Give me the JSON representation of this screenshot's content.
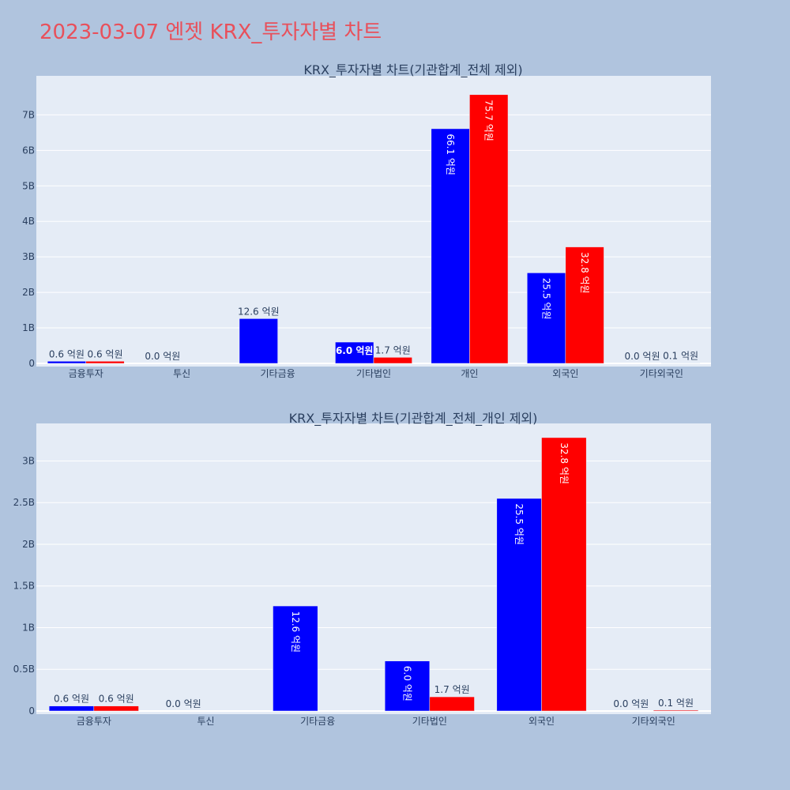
{
  "title": "2023-03-07 엔젯 KRX_투자자별 차트",
  "colors": {
    "page_bg": "#b0c4de",
    "plot_bg": "#e5ecf6",
    "grid": "#ffffff",
    "title": "#e8505b",
    "text": "#2a3f5f",
    "series_a": "#0000ff",
    "series_b": "#ff0000"
  },
  "chart_data": [
    {
      "type": "bar",
      "title": "KRX_투자자별 차트(기관합계_전체 제외)",
      "categories": [
        "금융투자",
        "투신",
        "기타금융",
        "기타법인",
        "개인",
        "외국인",
        "기타외국인"
      ],
      "ylim": [
        0,
        8100000000
      ],
      "yticks": [
        0,
        1000000000,
        2000000000,
        3000000000,
        4000000000,
        5000000000,
        6000000000,
        7000000000
      ],
      "ytick_labels": [
        "0",
        "1B",
        "2B",
        "3B",
        "4B",
        "5B",
        "6B",
        "7B"
      ],
      "series": [
        {
          "color": "#0000ff",
          "values": [
            60000000,
            0,
            1260000000,
            600000000,
            6610000000,
            2550000000,
            0
          ],
          "labels": [
            "0.6 억원",
            "0.0 억원",
            "12.6 억원",
            "6.0 억원",
            "66.1 억원",
            "25.5 억원",
            "0.0 억원"
          ]
        },
        {
          "color": "#ff0000",
          "values": [
            60000000,
            null,
            null,
            170000000,
            7570000000,
            3280000000,
            10000000
          ],
          "labels": [
            "0.6 억원",
            "",
            "",
            "1.7 억원",
            "75.7 억원",
            "32.8 억원",
            "0.1 억원"
          ]
        }
      ]
    },
    {
      "type": "bar",
      "title": "KRX_투자자별 차트(기관합계_전체_개인 제외)",
      "categories": [
        "금융투자",
        "투신",
        "기타금융",
        "기타법인",
        "외국인",
        "기타외국인"
      ],
      "ylim": [
        0,
        3450000000
      ],
      "yticks": [
        0,
        500000000,
        1000000000,
        1500000000,
        2000000000,
        2500000000,
        3000000000
      ],
      "ytick_labels": [
        "0",
        "0.5B",
        "1B",
        "1.5B",
        "2B",
        "2.5B",
        "3B"
      ],
      "series": [
        {
          "color": "#0000ff",
          "values": [
            60000000,
            0,
            1260000000,
            600000000,
            2550000000,
            0
          ],
          "labels": [
            "0.6 억원",
            "0.0 억원",
            "12.6 억원",
            "6.0 억원",
            "25.5 억원",
            "0.0 억원"
          ]
        },
        {
          "color": "#ff0000",
          "values": [
            60000000,
            null,
            null,
            170000000,
            3280000000,
            10000000
          ],
          "labels": [
            "0.6 억원",
            "",
            "",
            "1.7 억원",
            "32.8 억원",
            "0.1 억원"
          ]
        }
      ]
    }
  ]
}
